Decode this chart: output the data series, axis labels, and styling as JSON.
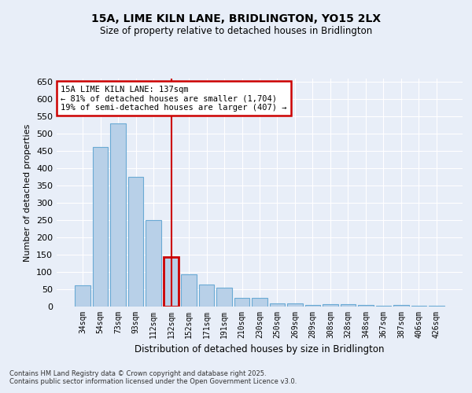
{
  "title1": "15A, LIME KILN LANE, BRIDLINGTON, YO15 2LX",
  "title2": "Size of property relative to detached houses in Bridlington",
  "xlabel": "Distribution of detached houses by size in Bridlington",
  "ylabel": "Number of detached properties",
  "categories": [
    "34sqm",
    "54sqm",
    "73sqm",
    "93sqm",
    "112sqm",
    "132sqm",
    "152sqm",
    "171sqm",
    "191sqm",
    "210sqm",
    "230sqm",
    "250sqm",
    "269sqm",
    "289sqm",
    "308sqm",
    "328sqm",
    "348sqm",
    "367sqm",
    "387sqm",
    "406sqm",
    "426sqm"
  ],
  "values": [
    62,
    462,
    530,
    375,
    250,
    143,
    93,
    63,
    55,
    25,
    25,
    10,
    10,
    5,
    7,
    7,
    4,
    3,
    5,
    3,
    3
  ],
  "bar_color": "#b8d0e8",
  "bar_edge_color": "#6aaad4",
  "highlight_index": 5,
  "highlight_edge_color": "#cc0000",
  "vline_color": "#cc0000",
  "ylim": [
    0,
    660
  ],
  "yticks": [
    0,
    50,
    100,
    150,
    200,
    250,
    300,
    350,
    400,
    450,
    500,
    550,
    600,
    650
  ],
  "annotation_title": "15A LIME KILN LANE: 137sqm",
  "annotation_line1": "← 81% of detached houses are smaller (1,704)",
  "annotation_line2": "19% of semi-detached houses are larger (407) →",
  "annotation_box_color": "#ffffff",
  "annotation_box_edge": "#cc0000",
  "background_color": "#e8eef8",
  "grid_color": "#ffffff",
  "footer1": "Contains HM Land Registry data © Crown copyright and database right 2025.",
  "footer2": "Contains public sector information licensed under the Open Government Licence v3.0."
}
